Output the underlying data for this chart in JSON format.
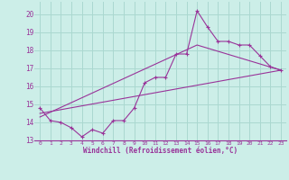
{
  "xlabel": "Windchill (Refroidissement éolien,°C)",
  "bg_color": "#cceee8",
  "grid_color": "#aad8d0",
  "line_color": "#993399",
  "axis_color": "#993399",
  "xlim": [
    -0.5,
    23.5
  ],
  "ylim": [
    13.0,
    20.7
  ],
  "yticks": [
    13,
    14,
    15,
    16,
    17,
    18,
    19,
    20
  ],
  "xticks": [
    0,
    1,
    2,
    3,
    4,
    5,
    6,
    7,
    8,
    9,
    10,
    11,
    12,
    13,
    14,
    15,
    16,
    17,
    18,
    19,
    20,
    21,
    22,
    23
  ],
  "series1_x": [
    0,
    1,
    2,
    3,
    4,
    5,
    6,
    7,
    8,
    9,
    10,
    11,
    12,
    13,
    14,
    15,
    16,
    17,
    18,
    19,
    20,
    21,
    22,
    23
  ],
  "series1_y": [
    14.8,
    14.1,
    14.0,
    13.7,
    13.2,
    13.6,
    13.4,
    14.1,
    14.1,
    14.8,
    16.2,
    16.5,
    16.5,
    17.8,
    17.8,
    20.2,
    19.3,
    18.5,
    18.5,
    18.3,
    18.3,
    17.7,
    17.1,
    16.9
  ],
  "series2_x": [
    0,
    23
  ],
  "series2_y": [
    14.5,
    16.9
  ],
  "series3_x": [
    0,
    15,
    23
  ],
  "series3_y": [
    14.3,
    18.3,
    16.9
  ]
}
